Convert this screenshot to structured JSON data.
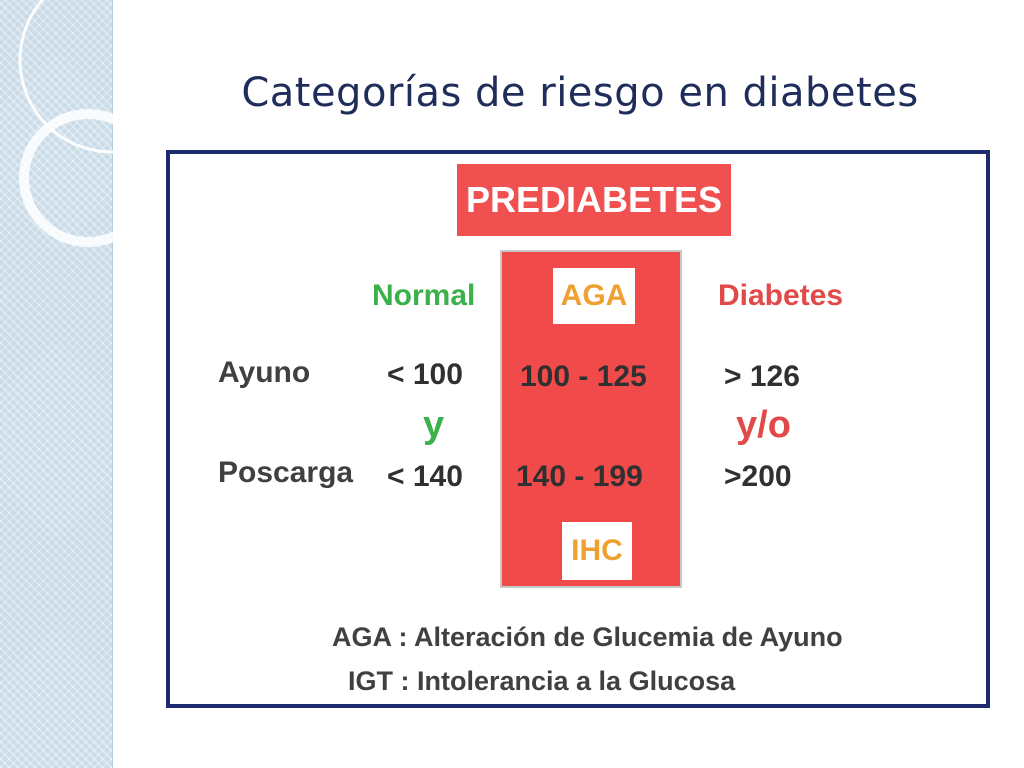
{
  "slide": {
    "title": "Categorías de riesgo en diabetes"
  },
  "figure": {
    "header": "PREDIABETES",
    "columns": {
      "normal": "Normal",
      "aga": "AGA",
      "diabetes": "Diabetes"
    },
    "rows": [
      {
        "label": "Ayuno",
        "normal": "< 100",
        "aga": "100 - 125",
        "diabetes": "> 126"
      },
      {
        "label": "Poscarga",
        "normal": "< 140",
        "aga": "140 - 199",
        "diabetes": ">200"
      }
    ],
    "connectors": {
      "normal": "y",
      "diabetes": "y/o"
    },
    "bottom_tag": "IHC",
    "legend": [
      "AGA : Alteración de Glucemia de Ayuno",
      "IGT : Intolerancia a la Glucosa"
    ]
  },
  "colors": {
    "title": "#1f2d5a",
    "frame": "#1e2a6e",
    "prediabetes_red": "#f04a4a",
    "normal_green": "#3cb04a",
    "diabetes_red": "#e24a4a",
    "tag_orange": "#f0a030",
    "side_band": "#c9dbe8"
  }
}
